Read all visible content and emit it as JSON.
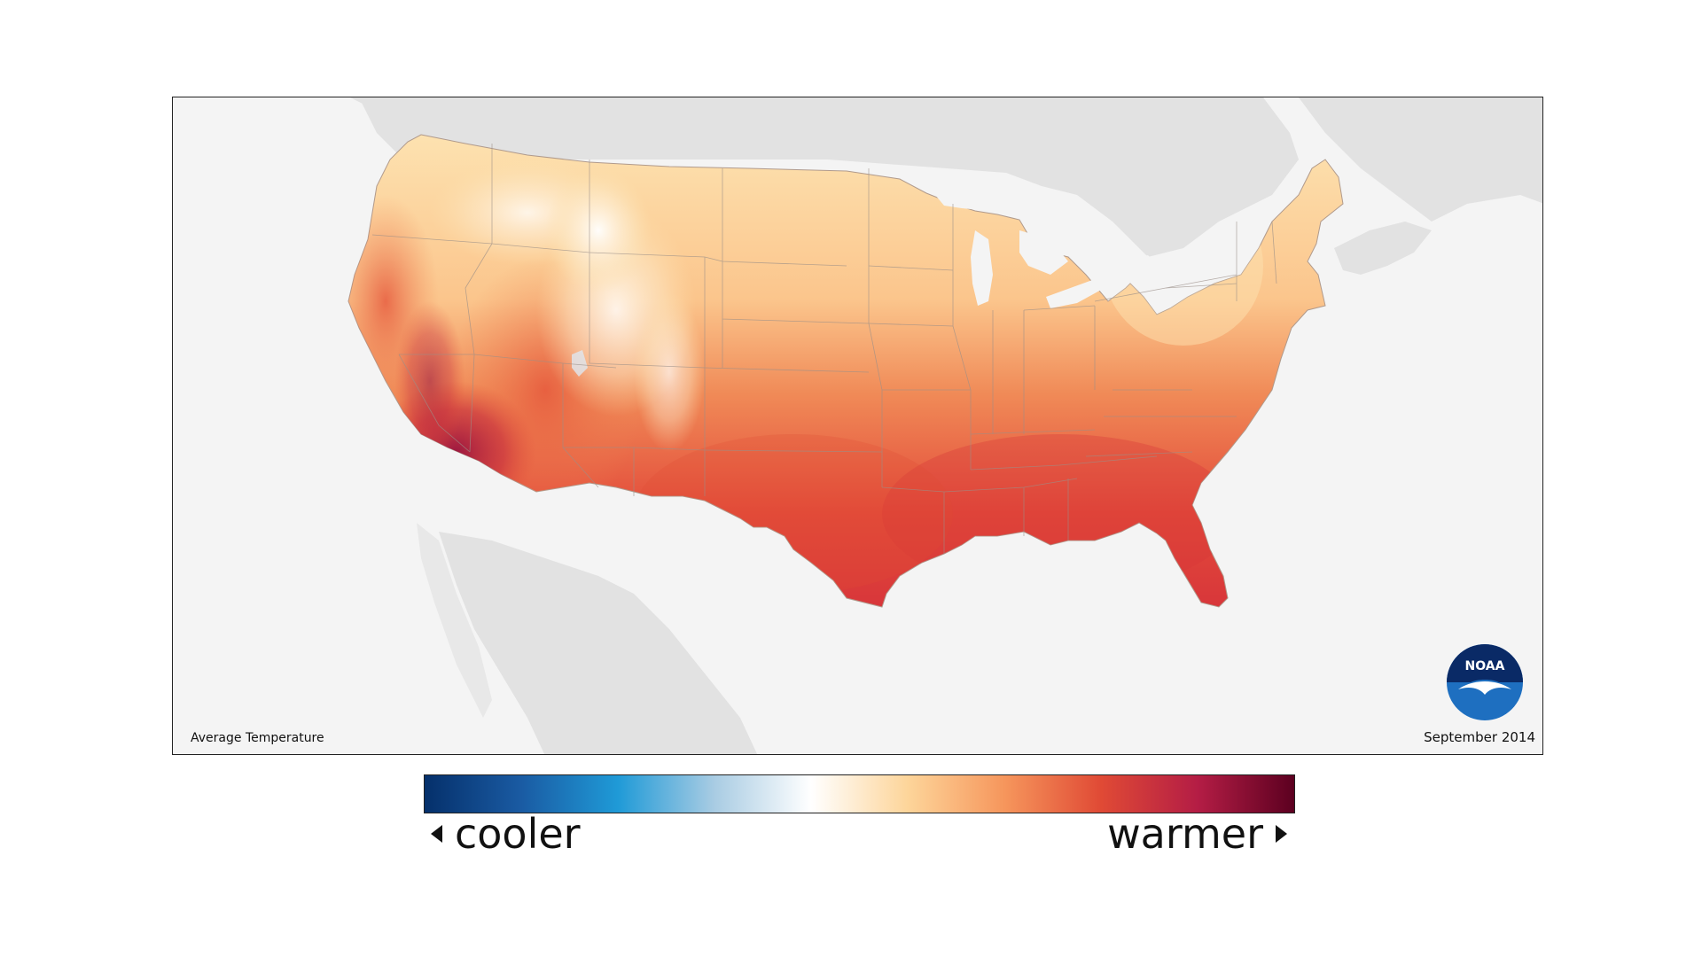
{
  "map": {
    "title": "Average Temperature",
    "date": "September 2014",
    "projection": "conterminous-us",
    "background_land_color": "#e2e2e2",
    "water_color": "#f4f4f4",
    "logo_icon": "noaa-logo-icon",
    "logo_text": "NOAA"
  },
  "legend": {
    "low_label": "cooler",
    "high_label": "warmer",
    "left_arrow_icon": "triangle-left-icon",
    "right_arrow_icon": "triangle-right-icon",
    "colors": [
      "#05306b",
      "#1a5ba3",
      "#1f9ad7",
      "#a9cce3",
      "#ffffff",
      "#fdd59a",
      "#f6965c",
      "#e04a35",
      "#b41d45",
      "#5c0020"
    ]
  }
}
